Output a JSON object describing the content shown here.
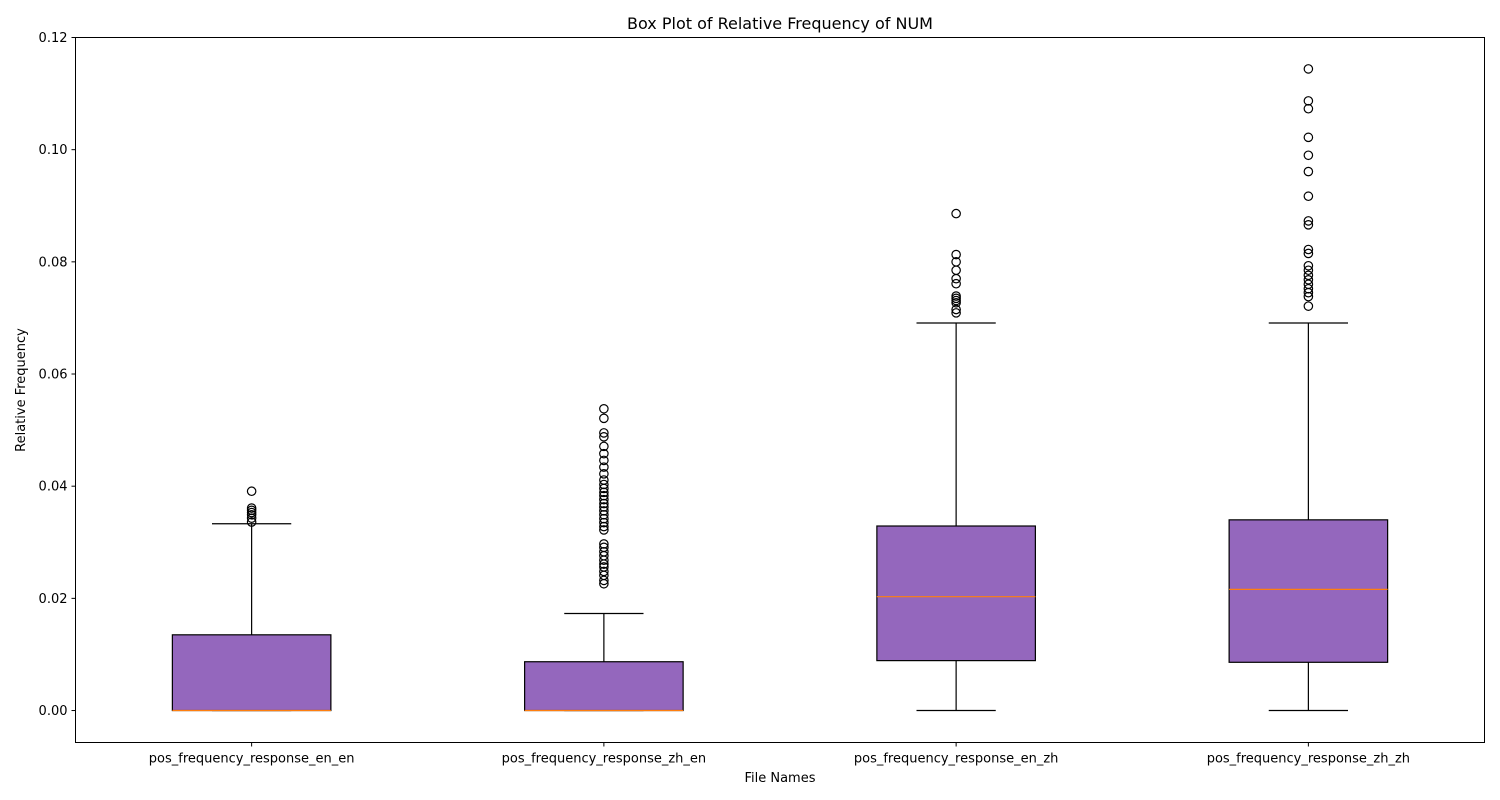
{
  "chart_data": {
    "type": "box",
    "title": "Box Plot of Relative Frequency of NUM",
    "xlabel": "File Names",
    "ylabel": "Relative Frequency",
    "ylim": [
      -0.0057,
      0.12
    ],
    "yticks": [
      "0.00",
      "0.02",
      "0.04",
      "0.06",
      "0.08",
      "0.10",
      "0.12"
    ],
    "ytick_values": [
      0,
      0.02,
      0.04,
      0.06,
      0.08,
      0.1,
      0.12
    ],
    "grid": false,
    "colors": {
      "box_fill": "#9467bd",
      "median": "#ff7f0e",
      "edge": "#000000"
    },
    "categories": [
      "pos_frequency_response_en_en",
      "pos_frequency_response_zh_en",
      "pos_frequency_response_en_zh",
      "pos_frequency_response_zh_zh"
    ],
    "boxes": [
      {
        "whisker_low": 0.0,
        "q1": 0.0,
        "median": 0.0,
        "q3": 0.0135,
        "whisker_high": 0.0333,
        "outliers": [
          0.0336,
          0.0343,
          0.0349,
          0.0353,
          0.0357,
          0.0361,
          0.0391
        ]
      },
      {
        "whisker_low": 0.0,
        "q1": 0.0,
        "median": 0.0,
        "q3": 0.0087,
        "whisker_high": 0.0173,
        "outliers": [
          0.0226,
          0.0232,
          0.0241,
          0.0248,
          0.0256,
          0.0261,
          0.0268,
          0.0276,
          0.0283,
          0.0291,
          0.0297,
          0.0322,
          0.0328,
          0.0335,
          0.0342,
          0.0349,
          0.0356,
          0.0363,
          0.0369,
          0.0376,
          0.0383,
          0.0389,
          0.0396,
          0.0403,
          0.0411,
          0.0422,
          0.0434,
          0.0446,
          0.0458,
          0.0471,
          0.0488,
          0.0495,
          0.0521,
          0.0538
        ]
      },
      {
        "whisker_low": 0.0,
        "q1": 0.0089,
        "median": 0.0203,
        "q3": 0.0329,
        "whisker_high": 0.0691,
        "outliers": [
          0.0709,
          0.0715,
          0.0727,
          0.0731,
          0.0735,
          0.0739,
          0.0761,
          0.077,
          0.0785,
          0.08,
          0.0813,
          0.0886
        ]
      },
      {
        "whisker_low": 0.0,
        "q1": 0.0086,
        "median": 0.0216,
        "q3": 0.034,
        "whisker_high": 0.0691,
        "outliers": [
          0.0721,
          0.0738,
          0.0745,
          0.0752,
          0.076,
          0.0768,
          0.0776,
          0.0785,
          0.0793,
          0.0815,
          0.0822,
          0.0866,
          0.0873,
          0.0917,
          0.0961,
          0.099,
          0.1022,
          0.1073,
          0.1087,
          0.1144
        ]
      }
    ]
  }
}
